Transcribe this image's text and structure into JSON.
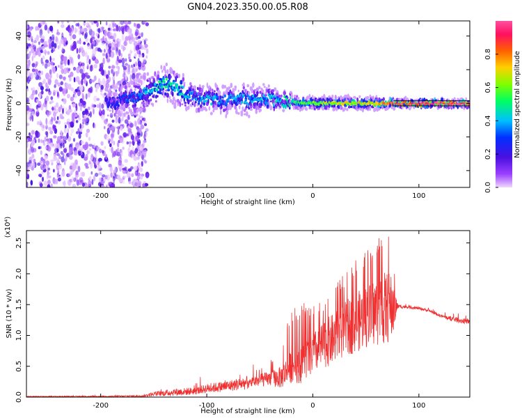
{
  "title": "GN04.2023.350.00.05.R08",
  "colors": {
    "snr_line": "#f03030",
    "center_band": "#000000",
    "colormap": [
      "#f0d8ff",
      "#9a40ff",
      "#4b10e0",
      "#0030ff",
      "#00c0ff",
      "#00ff60",
      "#80ff00",
      "#ffd000",
      "#ff6000",
      "#ff1060",
      "#ff50a0"
    ]
  },
  "chart_data": [
    {
      "type": "heatmap",
      "title": "GN04.2023.350.00.05.R08",
      "xlabel": "Height of straight line (km)",
      "ylabel": "Frequency (Hz)",
      "xlim": [
        -270,
        148
      ],
      "ylim": [
        -50,
        49
      ],
      "xticks": [
        -200,
        -100,
        0,
        100
      ],
      "yticks": [
        -40,
        -20,
        0,
        20,
        40
      ],
      "colorbar": {
        "label": "Normalized spectral amplitude",
        "range": [
          0.0,
          1.0
        ],
        "ticks": [
          0.0,
          0.2,
          0.4,
          0.6,
          0.8
        ]
      },
      "ridge": {
        "x": [
          -190,
          -170,
          -150,
          -140,
          -130,
          -120,
          -110,
          -100,
          -90,
          -80,
          -70,
          -60,
          -50,
          -40,
          -30,
          -20,
          -10,
          0,
          20,
          40,
          60,
          80,
          100,
          120,
          148
        ],
        "center": [
          0,
          3,
          10,
          12,
          10,
          6,
          4,
          2,
          2,
          2,
          3,
          2,
          4,
          2,
          1,
          1,
          0,
          0,
          0,
          0,
          0,
          0,
          0,
          0,
          0
        ],
        "halfwidth": [
          6,
          7,
          8,
          8,
          8,
          7,
          6,
          6,
          6,
          6,
          6,
          6,
          6,
          5,
          3,
          3,
          3,
          3,
          3,
          3,
          3,
          2,
          2,
          2,
          2
        ],
        "amplitude": [
          0.25,
          0.3,
          0.45,
          0.5,
          0.45,
          0.4,
          0.35,
          0.4,
          0.35,
          0.35,
          0.4,
          0.35,
          0.4,
          0.4,
          0.45,
          0.5,
          0.55,
          0.6,
          0.65,
          0.65,
          0.7,
          0.9,
          0.95,
          0.95,
          0.95
        ]
      },
      "noise_region_x": [
        -270,
        -160
      ]
    },
    {
      "type": "line",
      "title": "",
      "xlabel": "Height of straight line (km)",
      "ylabel": "SNR (10 * v/v)",
      "y_multiplier": "(x10⁴)",
      "xlim": [
        -270,
        148
      ],
      "ylim": [
        0,
        2.7
      ],
      "xticks": [
        -200,
        -100,
        0,
        100
      ],
      "yticks": [
        0.0,
        0.5,
        1.0,
        1.5,
        2.0,
        2.5
      ],
      "series": [
        {
          "x": [
            -270,
            -200,
            -160,
            -150,
            -130,
            -110,
            -100,
            -80,
            -60,
            -40,
            -30,
            -20,
            -10,
            0,
            10,
            20,
            30,
            40,
            50,
            60,
            70,
            75,
            80,
            90,
            100,
            110,
            120,
            130,
            140,
            148
          ],
          "y_base": [
            0.01,
            0.01,
            0.02,
            0.05,
            0.08,
            0.1,
            0.14,
            0.18,
            0.24,
            0.3,
            0.32,
            0.5,
            0.55,
            0.7,
            0.85,
            0.95,
            1.1,
            1.2,
            1.3,
            1.4,
            1.45,
            1.45,
            1.47,
            1.46,
            1.44,
            1.4,
            1.32,
            1.27,
            1.24,
            1.22
          ],
          "y_peak": [
            0.02,
            0.03,
            0.05,
            0.1,
            0.22,
            0.25,
            0.3,
            0.42,
            0.52,
            0.6,
            0.9,
            1.4,
            1.55,
            1.55,
            1.65,
            1.85,
            2.0,
            2.25,
            2.35,
            2.55,
            2.7,
            2.45,
            1.52,
            1.5,
            1.48,
            1.45,
            1.4,
            1.36,
            1.34,
            1.25
          ],
          "noise": [
            0.01,
            0.01,
            0.02,
            0.05,
            0.08,
            0.08,
            0.1,
            0.12,
            0.15,
            0.2,
            0.3,
            0.45,
            0.55,
            0.55,
            0.65,
            0.7,
            0.75,
            0.8,
            0.85,
            0.95,
            1.0,
            0.9,
            0.05,
            0.03,
            0.03,
            0.03,
            0.03,
            0.05,
            0.06,
            0.05
          ]
        }
      ]
    }
  ]
}
